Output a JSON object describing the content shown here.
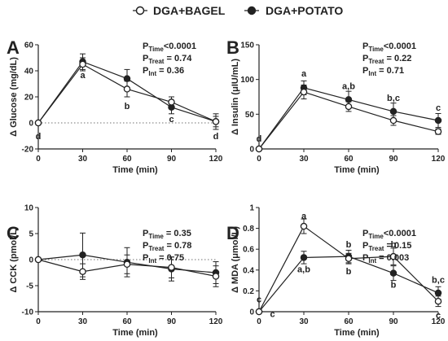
{
  "legend": [
    {
      "label": "DGA+BAGEL",
      "marker": "open-circle"
    },
    {
      "label": "DGA+POTATO",
      "marker": "filled-circle"
    }
  ],
  "colors": {
    "ink": "#222222",
    "open_fill": "#ffffff"
  },
  "chart_data": [
    {
      "panel": "A",
      "type": "line",
      "ylabel": "Δ Glucose (mg/dL)",
      "xlabel": "Time (min)",
      "x": [
        0,
        30,
        60,
        90,
        120
      ],
      "xlim": [
        0,
        120
      ],
      "ylim": [
        -20,
        60
      ],
      "yticks": [
        -20,
        0,
        20,
        40,
        60
      ],
      "zero_line": true,
      "series": [
        {
          "name": "DGA+BAGEL",
          "values": [
            0,
            45,
            26,
            16,
            1
          ],
          "errors": [
            0,
            5,
            6,
            4,
            4
          ]
        },
        {
          "name": "DGA+POTATO",
          "values": [
            0,
            47,
            34,
            12,
            1
          ],
          "errors": [
            0,
            6,
            7,
            5,
            6
          ]
        }
      ],
      "stats": [
        {
          "sub": "Time",
          "value": "<0.0001"
        },
        {
          "sub": "Treat",
          "value": " = 0.74"
        },
        {
          "sub": "Int",
          "value": " = 0.36"
        }
      ],
      "letters": [
        {
          "x": 0,
          "y": -10,
          "text": "d"
        },
        {
          "x": 30,
          "y": 37,
          "text": "a"
        },
        {
          "x": 60,
          "y": 13,
          "text": "b"
        },
        {
          "x": 90,
          "y": 3,
          "text": "c"
        },
        {
          "x": 120,
          "y": -10,
          "text": "d"
        }
      ]
    },
    {
      "panel": "B",
      "type": "line",
      "ylabel": "Δ Insulin (μIU/mL)",
      "xlabel": "Time (min)",
      "x": [
        0,
        30,
        60,
        90,
        120
      ],
      "xlim": [
        0,
        120
      ],
      "ylim": [
        0,
        150
      ],
      "yticks": [
        0,
        50,
        100,
        150
      ],
      "zero_line": false,
      "series": [
        {
          "name": "DGA+BAGEL",
          "values": [
            0,
            82,
            61,
            41,
            25
          ],
          "errors": [
            0,
            10,
            7,
            7,
            4
          ]
        },
        {
          "name": "DGA+POTATO",
          "values": [
            0,
            88,
            71,
            54,
            41
          ],
          "errors": [
            0,
            10,
            12,
            12,
            10
          ]
        }
      ],
      "stats": [
        {
          "sub": "Time",
          "value": "<0.0001"
        },
        {
          "sub": "Treat",
          "value": " = 0.22"
        },
        {
          "sub": "Int",
          "value": " = 0.71"
        }
      ],
      "letters": [
        {
          "x": 0,
          "y": 15,
          "text": "d"
        },
        {
          "x": 30,
          "y": 109,
          "text": "a"
        },
        {
          "x": 60,
          "y": 91,
          "text": "a,b"
        },
        {
          "x": 90,
          "y": 74,
          "text": "b,c"
        },
        {
          "x": 120,
          "y": 60,
          "text": "c"
        }
      ]
    },
    {
      "panel": "C",
      "type": "line",
      "ylabel": "Δ CCK (pmol/L)",
      "xlabel": "Time (min)",
      "x": [
        0,
        30,
        60,
        90,
        120
      ],
      "xlim": [
        0,
        120
      ],
      "ylim": [
        -10,
        10
      ],
      "yticks": [
        -10,
        -5,
        0,
        5,
        10
      ],
      "zero_line": true,
      "series": [
        {
          "name": "DGA+BAGEL",
          "values": [
            0,
            -2.3,
            -0.9,
            -1.5,
            -3.2
          ],
          "errors": [
            0,
            1.5,
            1.8,
            2.0,
            2.0
          ]
        },
        {
          "name": "DGA+POTATO",
          "values": [
            0,
            0.9,
            -0.5,
            -1.8,
            -2.5
          ],
          "errors": [
            0,
            4.2,
            2.8,
            2.3,
            2.1
          ]
        }
      ],
      "stats": [
        {
          "sub": "Time",
          "value": " = 0.35"
        },
        {
          "sub": "Treat",
          "value": " = 0.78"
        },
        {
          "sub": "Int",
          "value": " = 0.75"
        }
      ],
      "letters": []
    },
    {
      "panel": "D",
      "type": "line",
      "ylabel": "Δ MDA (μmol/L)",
      "xlabel": "Time (min)",
      "x": [
        0,
        30,
        60,
        90,
        120
      ],
      "xlim": [
        0,
        120
      ],
      "ylim": [
        0,
        1.0
      ],
      "yticks": [
        0,
        0.2,
        0.4,
        0.6,
        0.8,
        1.0
      ],
      "zero_line": false,
      "series": [
        {
          "name": "DGA+BAGEL",
          "values": [
            0,
            0.82,
            0.51,
            0.53,
            0.1
          ],
          "errors": [
            0,
            0.07,
            0.05,
            0.08,
            0.05
          ]
        },
        {
          "name": "DGA+POTATO",
          "values": [
            0,
            0.52,
            0.53,
            0.37,
            0.18
          ],
          "errors": [
            0,
            0.06,
            0.06,
            0.07,
            0.06
          ]
        }
      ],
      "stats": [
        {
          "sub": "Time",
          "value": "<0.0001"
        },
        {
          "sub": "Treat",
          "value": " = 0.15"
        },
        {
          "sub": "Int",
          "value": " = 0.003"
        }
      ],
      "letters": [
        {
          "x": 0,
          "y": 0.12,
          "text": "c"
        },
        {
          "x": 9,
          "y": -0.02,
          "text": "c"
        },
        {
          "x": 30,
          "y": 0.92,
          "text": "a"
        },
        {
          "x": 30,
          "y": 0.41,
          "text": "a,b"
        },
        {
          "x": 60,
          "y": 0.65,
          "text": "b"
        },
        {
          "x": 60,
          "y": 0.39,
          "text": "b"
        },
        {
          "x": 90,
          "y": 0.65,
          "text": "b"
        },
        {
          "x": 90,
          "y": 0.26,
          "text": "b"
        },
        {
          "x": 120,
          "y": 0.31,
          "text": "b,c"
        },
        {
          "x": 120,
          "y": -0.03,
          "text": "c"
        }
      ]
    }
  ]
}
